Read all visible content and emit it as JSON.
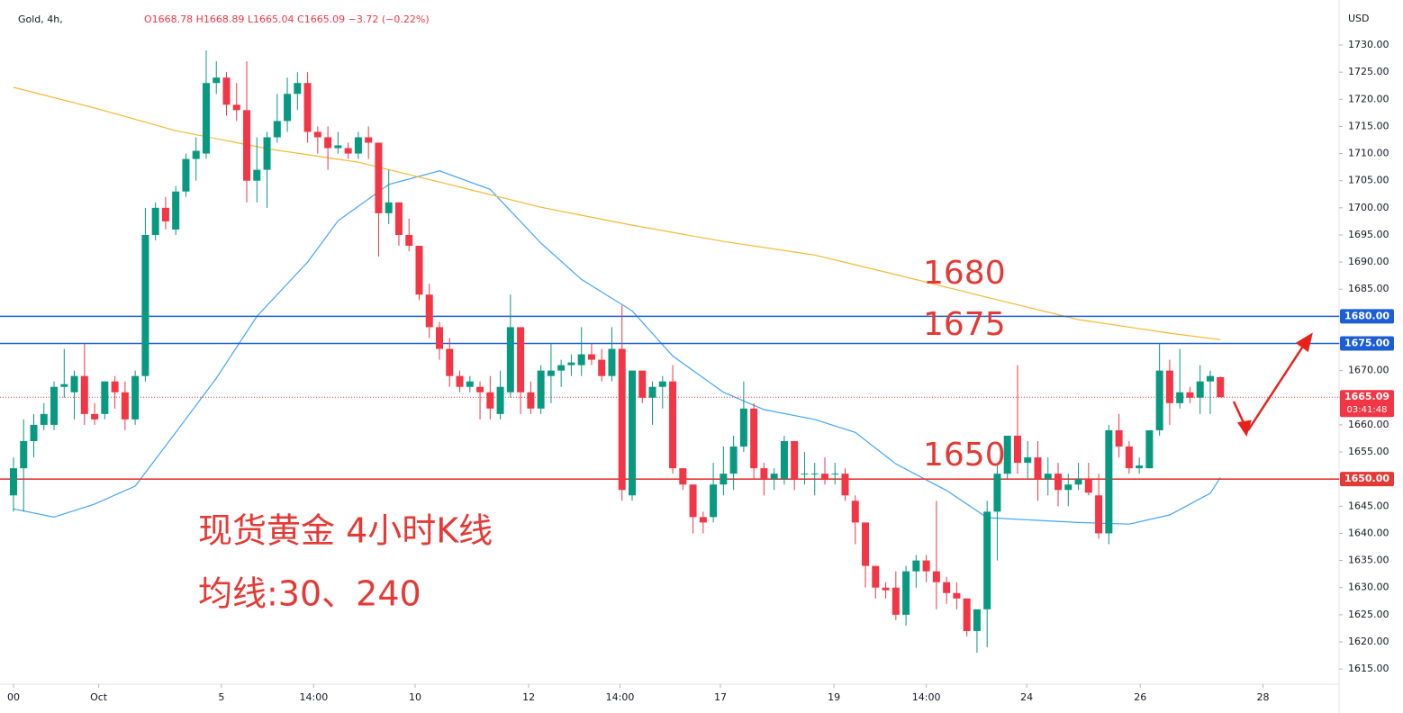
{
  "chart_data": {
    "type": "candlestick",
    "title": "Gold, 4h,",
    "subtitle": "O1668.78  H1668.89  L1665.04  C1665.09  −3.72 (−0.22%)",
    "y_axis_label": "USD",
    "up_color": "#089981",
    "down_color": "#f23645",
    "x": [
      0,
      1,
      2,
      3,
      4,
      5,
      6,
      7,
      8,
      9,
      10,
      11,
      12,
      13,
      14,
      15,
      16,
      17,
      18,
      19,
      20,
      21,
      22,
      23,
      24,
      25,
      26,
      27,
      28,
      29,
      30,
      31,
      32,
      33,
      34,
      35,
      36,
      37,
      38,
      39,
      40,
      41,
      42,
      43,
      44,
      45,
      46,
      47,
      48,
      49,
      50,
      51,
      52,
      53,
      54,
      55,
      56,
      57,
      58,
      59,
      60,
      61,
      62,
      63,
      64,
      65,
      66,
      67,
      68,
      69,
      70,
      71,
      72,
      73,
      74,
      75,
      76,
      77,
      78,
      79,
      80,
      81,
      82,
      83,
      84,
      85,
      86,
      87,
      88,
      89,
      90,
      91,
      92,
      93,
      94,
      95,
      96,
      97,
      98,
      99,
      100,
      101,
      102,
      103,
      104,
      105,
      106,
      107,
      108,
      109,
      110,
      111,
      112,
      113,
      114,
      115,
      116,
      117,
      118,
      119
    ],
    "open": [
      1647,
      1652,
      1657,
      1660,
      1660,
      1667,
      1666,
      1669,
      1662,
      1662,
      1668,
      1666,
      1661,
      1669,
      1695,
      1700,
      1696,
      1703,
      1709,
      1710,
      1723,
      1724,
      1719,
      1718,
      1705,
      1707,
      1713,
      1716,
      1721,
      1723,
      1714,
      1713,
      1711,
      1711,
      1710,
      1713,
      1712,
      1699,
      1701,
      1695,
      1693,
      1684,
      1678,
      1674,
      1669,
      1667,
      1667,
      1666,
      1662,
      1666,
      1678,
      1666,
      1663,
      1669,
      1670,
      1671,
      1671,
      1673,
      1672,
      1669,
      1674,
      1647,
      1670,
      1665,
      1667,
      1668,
      1652,
      1649,
      1643,
      1643,
      1649,
      1651,
      1656,
      1663,
      1652,
      1650,
      1650,
      1657,
      1651,
      1651,
      1651,
      1651,
      1651,
      1646,
      1642,
      1634,
      1630,
      1630,
      1625,
      1633,
      1635,
      1633,
      1631,
      1629,
      1628,
      1622,
      1626,
      1644,
      1651,
      1658,
      1653,
      1654,
      1650,
      1651,
      1648,
      1649,
      1650,
      1647,
      1640,
      1659,
      1656,
      1652,
      1652,
      1659,
      1670,
      1664,
      1666,
      1665,
      1668,
      1668.78
    ],
    "high": [
      1654,
      1661,
      1662,
      1664,
      1668,
      1674,
      1670,
      1675,
      1664,
      1668,
      1669,
      1668,
      1670,
      1700,
      1701,
      1702,
      1704,
      1710,
      1713,
      1729,
      1727,
      1725,
      1723,
      1727,
      1713,
      1714,
      1721,
      1724,
      1725,
      1725,
      1715,
      1715,
      1714,
      1712,
      1714,
      1715,
      1712,
      1707,
      1701,
      1698,
      1693,
      1686,
      1679,
      1676,
      1670,
      1669,
      1668,
      1669,
      1670,
      1684,
      1678,
      1668,
      1671,
      1675,
      1672,
      1673,
      1678,
      1675,
      1674,
      1678,
      1682,
      1670,
      1670,
      1668,
      1669,
      1671,
      1652,
      1649,
      1644,
      1653,
      1656,
      1658,
      1668,
      1664,
      1653,
      1652,
      1658,
      1657,
      1655,
      1653,
      1654,
      1653,
      1652,
      1647,
      1642,
      1634,
      1631,
      1633,
      1634,
      1636,
      1636,
      1646,
      1632,
      1631,
      1628,
      1626,
      1646,
      1653,
      1658,
      1671,
      1657,
      1657,
      1654,
      1653,
      1651,
      1653,
      1653,
      1651,
      1660,
      1662,
      1657,
      1654,
      1659,
      1675,
      1672,
      1674,
      1667,
      1671,
      1670,
      1668.89
    ],
    "low": [
      1644,
      1644,
      1654,
      1659,
      1659,
      1665,
      1661,
      1660,
      1660,
      1661,
      1663,
      1659,
      1660,
      1668,
      1694,
      1696,
      1695,
      1702,
      1705,
      1709,
      1721,
      1717,
      1716,
      1701,
      1701,
      1700,
      1712,
      1714,
      1718,
      1712,
      1710,
      1707,
      1710,
      1709,
      1709,
      1709,
      1691,
      1697,
      1693,
      1692,
      1683,
      1676,
      1672,
      1667,
      1666,
      1666,
      1661,
      1661,
      1661,
      1665,
      1662,
      1662,
      1662,
      1664,
      1667,
      1669,
      1669,
      1671,
      1668,
      1668,
      1646,
      1646,
      1664,
      1660,
      1663,
      1651,
      1648,
      1640,
      1640,
      1642,
      1647,
      1648,
      1655,
      1650,
      1647,
      1648,
      1649,
      1648,
      1649,
      1647,
      1649,
      1649,
      1646,
      1638,
      1630,
      1628,
      1628,
      1624,
      1623,
      1630,
      1631,
      1626,
      1627,
      1626,
      1621,
      1618,
      1619,
      1635,
      1650,
      1651,
      1650,
      1646,
      1647,
      1645,
      1645,
      1648,
      1647,
      1639,
      1638,
      1654,
      1651,
      1651,
      1652,
      1658,
      1660,
      1663,
      1664,
      1662,
      1662,
      1665.04
    ],
    "close": [
      1652,
      1657,
      1660,
      1662,
      1667,
      1667.5,
      1669,
      1662,
      1661,
      1668,
      1666,
      1661,
      1669,
      1695,
      1700,
      1697.5,
      1703,
      1709,
      1710.5,
      1723,
      1724,
      1719,
      1718,
      1705,
      1707,
      1713,
      1716,
      1721,
      1723,
      1714,
      1713,
      1711,
      1711.5,
      1710,
      1713,
      1712,
      1699,
      1701,
      1695,
      1693,
      1684,
      1678,
      1674,
      1669,
      1667,
      1668,
      1666,
      1663,
      1667,
      1678,
      1666,
      1663,
      1670,
      1670,
      1671,
      1671.5,
      1673,
      1672,
      1669,
      1674,
      1648,
      1670,
      1665,
      1667,
      1668,
      1652,
      1649,
      1643,
      1642,
      1649,
      1651,
      1656,
      1663,
      1652,
      1650,
      1651,
      1657,
      1650,
      1651,
      1651,
      1650,
      1651,
      1647,
      1642,
      1634,
      1630,
      1629.5,
      1625,
      1633,
      1635,
      1633,
      1631,
      1629,
      1628,
      1622,
      1626,
      1644,
      1651,
      1658,
      1653,
      1654,
      1650,
      1651,
      1648,
      1649,
      1650,
      1647.5,
      1640,
      1659,
      1656,
      1652,
      1652.5,
      1659,
      1670,
      1664,
      1666,
      1665,
      1668,
      1669,
      1665.09
    ],
    "ma": [
      {
        "name": "MA30",
        "color": "#42a5f5",
        "x": [
          0,
          4,
          8,
          12,
          16,
          20,
          24,
          29,
          32,
          37,
          42,
          47,
          52,
          56,
          61,
          65,
          70,
          74,
          79,
          83,
          87,
          92,
          96,
          101,
          105,
          110,
          114,
          118,
          119
        ],
        "values": [
          1644.5,
          1643,
          1645.4,
          1648.7,
          1658.6,
          1668.6,
          1680,
          1690,
          1697.6,
          1704.3,
          1706.8,
          1703.4,
          1693.5,
          1686.8,
          1681,
          1672.7,
          1666,
          1662.8,
          1661,
          1658.6,
          1652.8,
          1647.9,
          1642.9,
          1642.4,
          1642,
          1641.7,
          1643.4,
          1647.4,
          1650.3
        ]
      },
      {
        "name": "MA240",
        "color": "#f5b82e",
        "x": [
          0,
          8,
          16,
          25,
          34,
          43,
          52,
          61,
          70,
          79,
          87,
          96,
          105,
          114,
          119
        ],
        "values": [
          1722.2,
          1718.4,
          1714.2,
          1710.9,
          1708.4,
          1704.3,
          1700.1,
          1696.8,
          1693.8,
          1691.3,
          1687.7,
          1683.5,
          1679.4,
          1676.9,
          1675.7
        ]
      }
    ],
    "hlines": [
      {
        "value": 1680,
        "label": "1680.00",
        "color": "#1c5ed6"
      },
      {
        "value": 1675,
        "label": "1675.00",
        "color": "#1c5ed6"
      },
      {
        "value": 1650,
        "label": "1650.00",
        "color": "#e53935"
      }
    ],
    "last_price": 1665.09,
    "countdown": "03:41:48",
    "annotations": [
      "1680",
      "1675",
      "1650",
      "现货黄金 4小时K线",
      "均线:30、240"
    ],
    "annotation_color": "#e53935",
    "xlim": [
      -1.33,
      130.7
    ],
    "xticks": [
      {
        "value": 0,
        "label": "00"
      },
      {
        "value": 8.4,
        "label": "Oct"
      },
      {
        "value": 20.5,
        "label": "5"
      },
      {
        "value": 29.6,
        "label": "14:00"
      },
      {
        "value": 39.6,
        "label": "10"
      },
      {
        "value": 50.8,
        "label": "12"
      },
      {
        "value": 59.8,
        "label": "14:00"
      },
      {
        "value": 69.7,
        "label": "17"
      },
      {
        "value": 80.9,
        "label": "19"
      },
      {
        "value": 90,
        "label": "14:00"
      },
      {
        "value": 99.9,
        "label": "24"
      },
      {
        "value": 111.1,
        "label": "26"
      },
      {
        "value": 123.2,
        "label": "28"
      }
    ],
    "ylim": [
      1612.2,
      1738.3
    ],
    "yticks": [
      {
        "value": 1615,
        "label": "1615.00"
      },
      {
        "value": 1620,
        "label": "1620.00"
      },
      {
        "value": 1625,
        "label": "1625.00"
      },
      {
        "value": 1630,
        "label": "1630.00"
      },
      {
        "value": 1635,
        "label": "1635.00"
      },
      {
        "value": 1640,
        "label": "1640.00"
      },
      {
        "value": 1645,
        "label": "1645.00"
      },
      {
        "value": 1650,
        "label": "1650.00"
      },
      {
        "value": 1655,
        "label": "1655.00"
      },
      {
        "value": 1660,
        "label": "1660.00"
      },
      {
        "value": 1665,
        "label": "1665.00"
      },
      {
        "value": 1670,
        "label": "1670.00"
      },
      {
        "value": 1675,
        "label": "1675.00"
      },
      {
        "value": 1680,
        "label": "1680.00"
      },
      {
        "value": 1685,
        "label": "1685.00"
      },
      {
        "value": 1690,
        "label": "1690.00"
      },
      {
        "value": 1695,
        "label": "1695.00"
      },
      {
        "value": 1700,
        "label": "1700.00"
      },
      {
        "value": 1705,
        "label": "1705.00"
      },
      {
        "value": 1710,
        "label": "1710.00"
      },
      {
        "value": 1715,
        "label": "1715.00"
      },
      {
        "value": 1720,
        "label": "1720.00"
      },
      {
        "value": 1725,
        "label": "1725.00"
      },
      {
        "value": 1730,
        "label": "1730.00"
      }
    ],
    "grid": false
  }
}
